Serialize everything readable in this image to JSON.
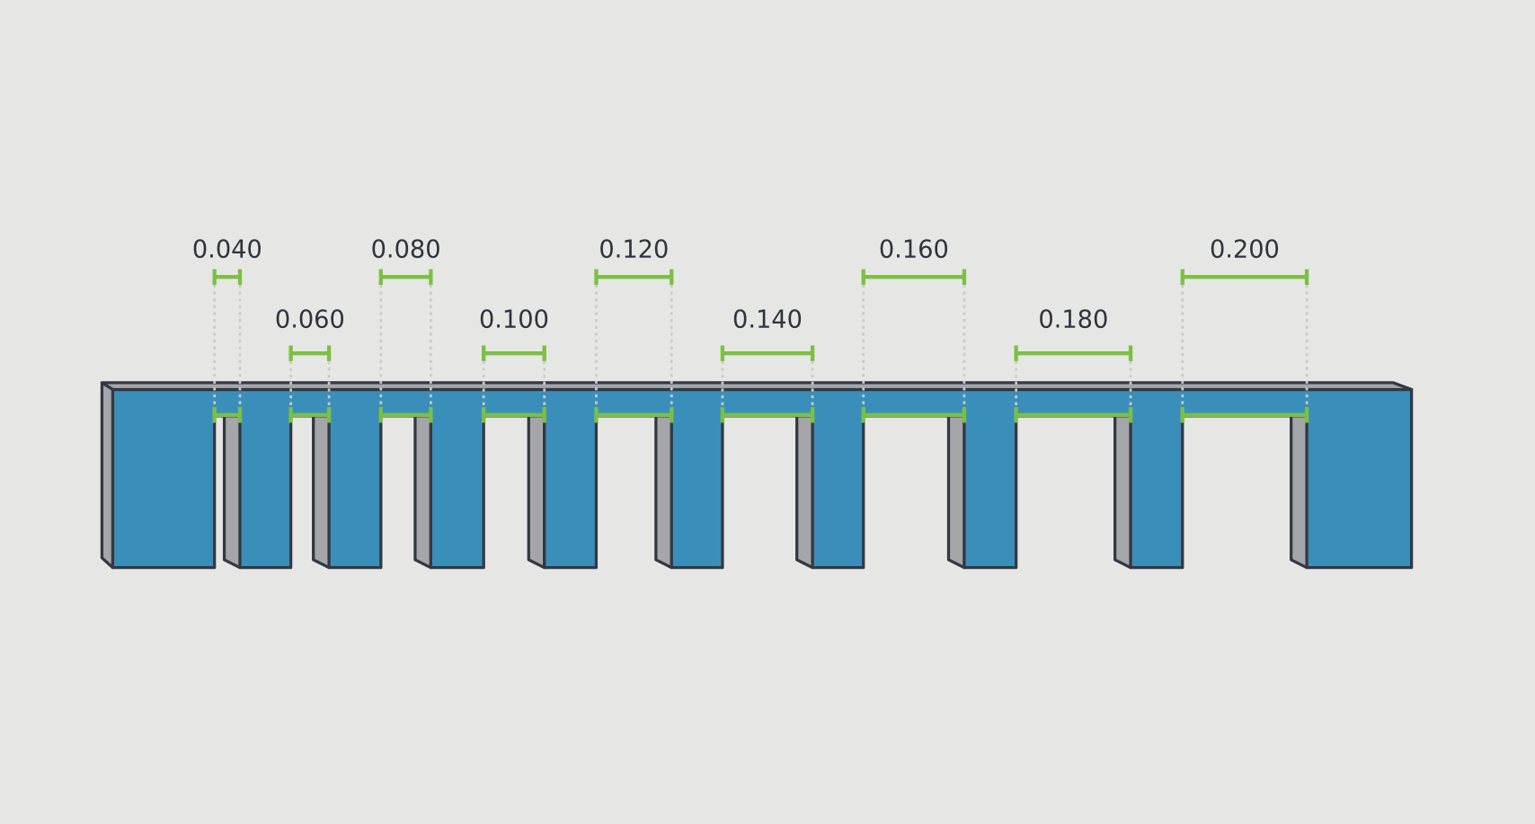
{
  "gaps": [
    {
      "label": "0.040"
    },
    {
      "label": "0.060"
    },
    {
      "label": "0.080"
    },
    {
      "label": "0.100"
    },
    {
      "label": "0.120"
    },
    {
      "label": "0.140"
    },
    {
      "label": "0.160"
    },
    {
      "label": "0.180"
    },
    {
      "label": "0.200"
    }
  ]
}
